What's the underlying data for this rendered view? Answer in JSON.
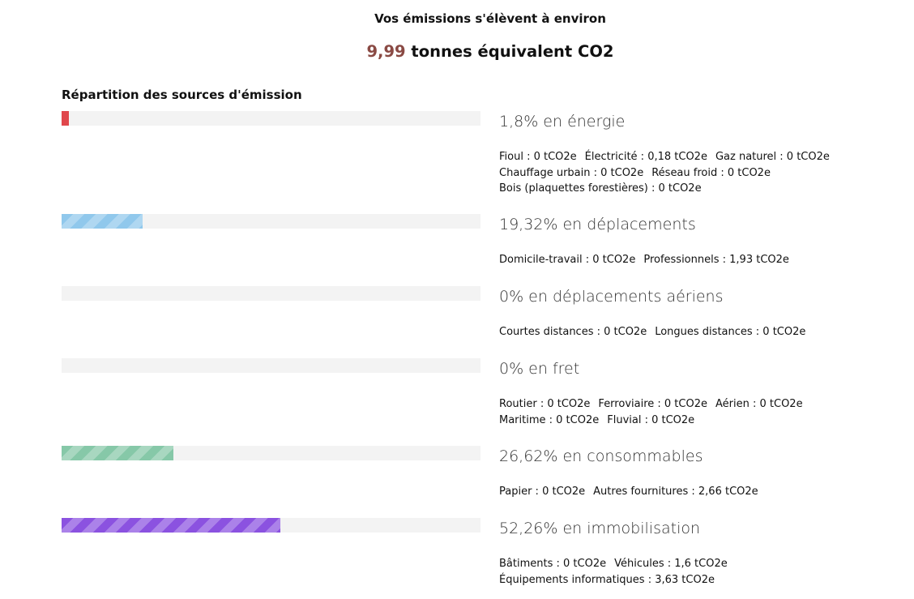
{
  "header": {
    "intro": "Vos émissions s'élèvent à environ",
    "total_value": "9,99",
    "total_unit": "tonnes équivalent CO2"
  },
  "section_title": "Répartition des sources d'émission",
  "colors": {
    "accent": "#8a4a44",
    "energie": "#e0474c",
    "deplacements": "#90c8ec",
    "aeriens": "#cccccc",
    "fret": "#cccccc",
    "consommables": "#86c8a8",
    "immobilisation": "#8b52e0"
  },
  "categories": [
    {
      "key": "energie",
      "title": "1,8% en énergie",
      "percent": 1.8,
      "details": [
        "Fioul : 0 tCO2e",
        "Électricité : 0,18 tCO2e",
        "Gaz naturel : 0 tCO2e",
        "Chauffage urbain : 0 tCO2e",
        "Réseau froid : 0 tCO2e",
        "Bois (plaquettes forestières) : 0 tCO2e"
      ]
    },
    {
      "key": "deplacements",
      "title": "19,32% en déplacements",
      "percent": 19.32,
      "details": [
        "Domicile-travail : 0 tCO2e",
        "Professionnels : 1,93 tCO2e"
      ]
    },
    {
      "key": "aeriens",
      "title": "0% en déplacements aériens",
      "percent": 0,
      "details": [
        "Courtes distances : 0 tCO2e",
        "Longues distances : 0 tCO2e"
      ]
    },
    {
      "key": "fret",
      "title": "0% en fret",
      "percent": 0,
      "details": [
        "Routier : 0 tCO2e",
        "Ferroviaire : 0 tCO2e",
        "Aérien : 0 tCO2e",
        "Maritime : 0 tCO2e",
        "Fluvial : 0 tCO2e"
      ]
    },
    {
      "key": "consommables",
      "title": "26,62% en consommables",
      "percent": 26.62,
      "details": [
        "Papier : 0 tCO2e",
        "Autres fournitures : 2,66 tCO2e"
      ]
    },
    {
      "key": "immobilisation",
      "title": "52,26% en immobilisation",
      "percent": 52.26,
      "details": [
        "Bâtiments : 0 tCO2e",
        "Véhicules : 1,6 tCO2e",
        "Équipements informatiques : 3,63 tCO2e"
      ]
    }
  ]
}
